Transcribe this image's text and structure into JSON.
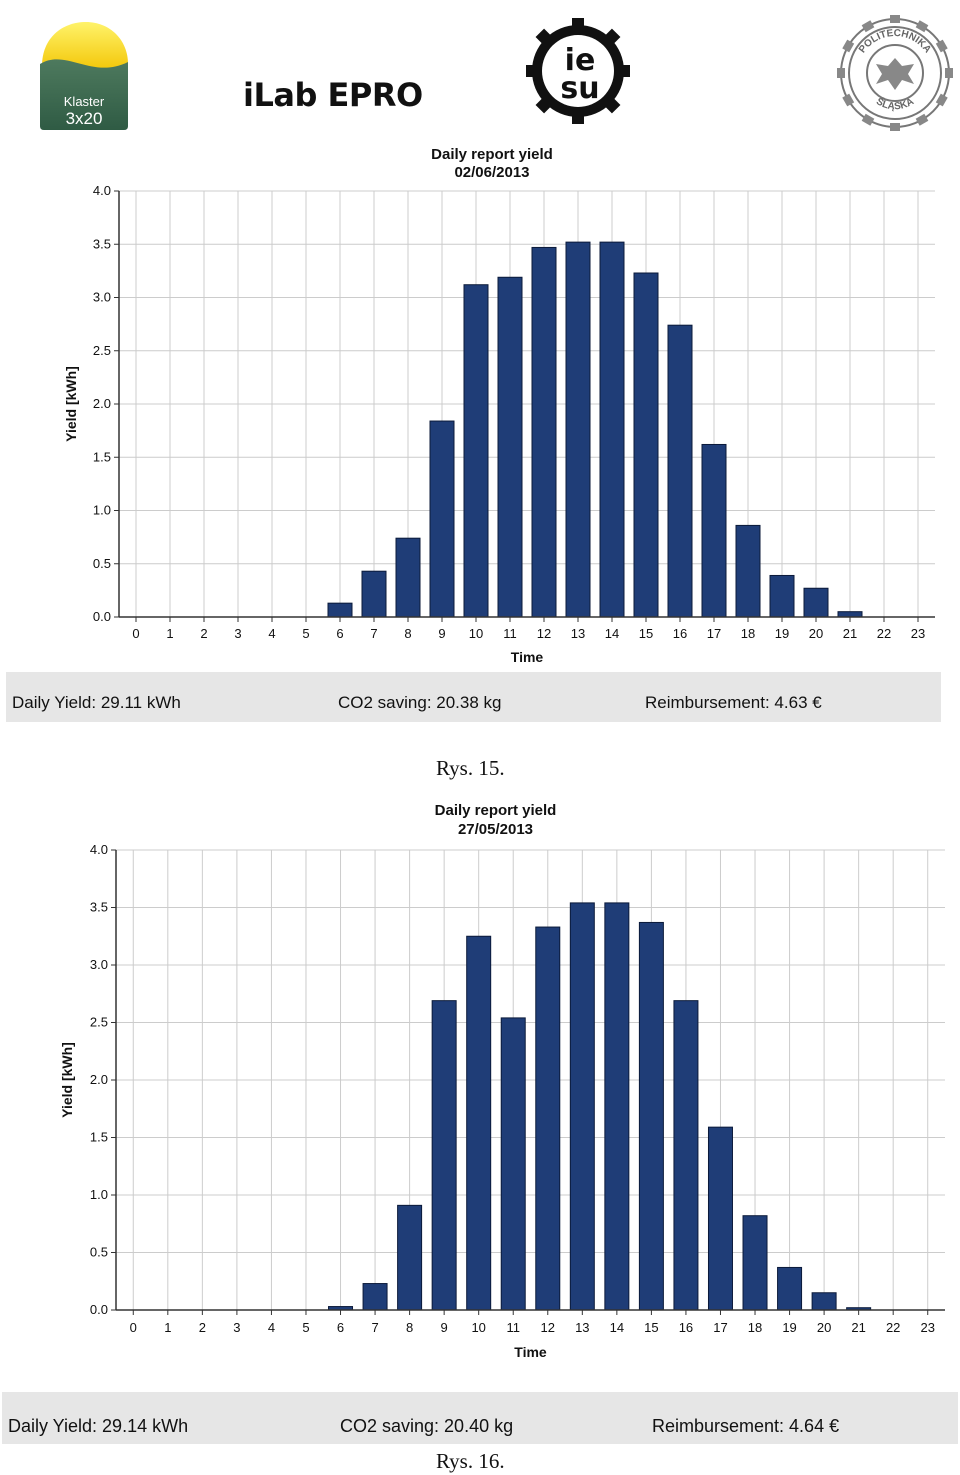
{
  "logos": {
    "klaster_text_1": "Klaster",
    "klaster_text_2": "3x20",
    "ilab_text": "iLab EPRO",
    "iesu_text_1": "ie",
    "iesu_text_2": "su",
    "polsl_text_1": "POLITECHNIKA",
    "polsl_text_2": "ŚLĄSKA"
  },
  "colors": {
    "bar": "#1f3d77",
    "grid": "#cccccc",
    "summary_bg": "#e6e6e6"
  },
  "chart_data": [
    {
      "type": "bar",
      "title": "Daily report yield",
      "subtitle": "02/06/2013",
      "xlabel": "Time",
      "ylabel": "Yield [kWh]",
      "ylim": [
        0,
        4.0
      ],
      "yticks": [
        "0.0",
        "0.5",
        "1.0",
        "1.5",
        "2.0",
        "2.5",
        "3.0",
        "3.5",
        "4.0"
      ],
      "categories": [
        "0",
        "1",
        "2",
        "3",
        "4",
        "5",
        "6",
        "7",
        "8",
        "9",
        "10",
        "11",
        "12",
        "13",
        "14",
        "15",
        "16",
        "17",
        "18",
        "19",
        "20",
        "21",
        "22",
        "23"
      ],
      "values": [
        0,
        0,
        0,
        0,
        0,
        0,
        0.13,
        0.43,
        0.74,
        1.84,
        3.12,
        3.19,
        3.47,
        3.52,
        3.52,
        3.23,
        2.74,
        1.62,
        0.86,
        0.39,
        0.27,
        0.05,
        0,
        0
      ],
      "grid": true
    },
    {
      "type": "bar",
      "title": "Daily report yield",
      "subtitle": "27/05/2013",
      "xlabel": "Time",
      "ylabel": "Yield [kWh]",
      "ylim": [
        0,
        4.0
      ],
      "yticks": [
        "0.0",
        "0.5",
        "1.0",
        "1.5",
        "2.0",
        "2.5",
        "3.0",
        "3.5",
        "4.0"
      ],
      "categories": [
        "0",
        "1",
        "2",
        "3",
        "4",
        "5",
        "6",
        "7",
        "8",
        "9",
        "10",
        "11",
        "12",
        "13",
        "14",
        "15",
        "16",
        "17",
        "18",
        "19",
        "20",
        "21",
        "22",
        "23"
      ],
      "values": [
        0,
        0,
        0,
        0,
        0,
        0,
        0.03,
        0.23,
        0.91,
        2.69,
        3.25,
        2.54,
        3.33,
        3.54,
        3.54,
        3.37,
        2.69,
        1.59,
        0.82,
        0.37,
        0.15,
        0.02,
        0,
        0
      ],
      "grid": true
    }
  ],
  "summaries": [
    {
      "yield": "Daily Yield: 29.11 kWh",
      "co2": "CO2 saving: 20.38 kg",
      "reimbursement": "Reimbursement: 4.63 €"
    },
    {
      "yield": "Daily Yield: 29.14 kWh",
      "co2": "CO2 saving: 20.40 kg",
      "reimbursement": "Reimbursement: 4.64 €"
    }
  ],
  "captions": [
    "Rys. 15.",
    "Rys. 16."
  ]
}
